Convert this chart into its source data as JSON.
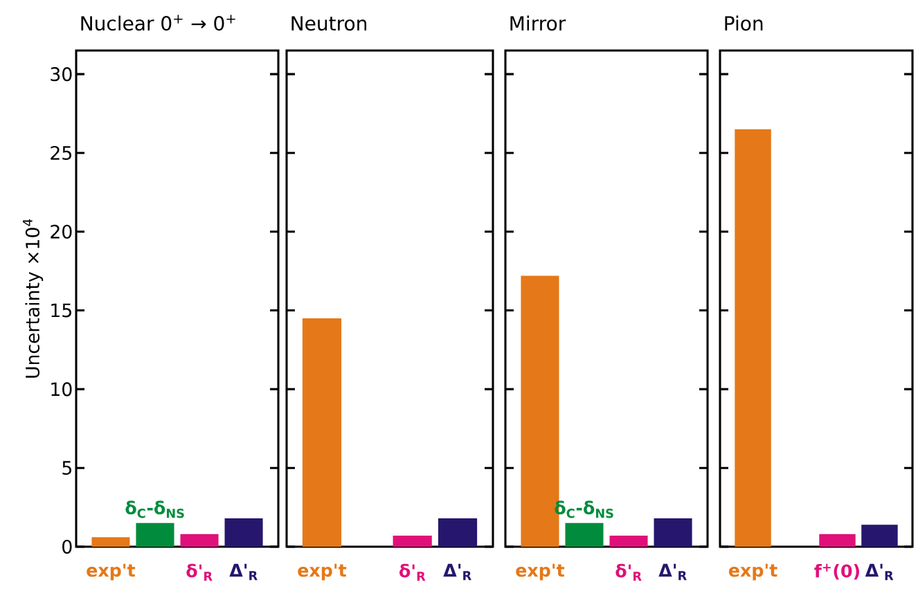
{
  "chart_data": [
    {
      "type": "bar",
      "title": "Nuclear 0$^{+}$ → 0$^{+}$",
      "ylabel": "Uncertainty ×10$^{4}$",
      "categories": [
        "exp't",
        null,
        "δ'$_{R}$",
        "Δ'$_{R}$"
      ],
      "values": [
        0.6,
        1.5,
        0.8,
        1.8
      ],
      "colors": [
        "#e57818",
        "#008c3c",
        "#e0107a",
        "#26166e"
      ],
      "ylim": [
        0,
        31.5
      ],
      "yticks": [
        0,
        5,
        10,
        15,
        20,
        25,
        30
      ],
      "annotations": [
        {
          "text": "δ$_{C}$-δ$_{NS}$",
          "y": 1.5
        }
      ]
    },
    {
      "type": "bar",
      "title": "Neutron",
      "categories": [
        "exp't",
        null,
        "δ'$_{R}$",
        "Δ'$_{R}$"
      ],
      "values": [
        14.5,
        null,
        0.7,
        1.8
      ],
      "colors": [
        "#e57818",
        null,
        "#e0107a",
        "#26166e"
      ],
      "ylim": [
        0,
        31.5
      ],
      "yticks": [
        0,
        5,
        10,
        15,
        20,
        25,
        30
      ],
      "tick_labels": "x"
    },
    {
      "type": "bar",
      "title": "Mirror",
      "categories": [
        "exp't",
        null,
        "δ'$_{R}$",
        "Δ'$_{R}$"
      ],
      "values": [
        17.2,
        1.5,
        0.7,
        1.8
      ],
      "colors": [
        "#e57818",
        "#008c3c",
        "#e0107a",
        "#26166e"
      ],
      "ylim": [
        0,
        31.5
      ],
      "yticks": [
        0,
        5,
        10,
        15,
        20,
        25,
        30
      ],
      "tick_labels": "x",
      "annotations": [
        {
          "text": "δ$_{C}$-δ$_{NS}$",
          "y": 1.5
        }
      ]
    },
    {
      "type": "bar",
      "title": "Pion",
      "categories": [
        "exp't",
        null,
        "f$^{+}$(0)",
        "Δ'$_{R}$"
      ],
      "values": [
        26.5,
        null,
        0.8,
        1.4
      ],
      "colors": [
        "#e57818",
        null,
        "#e0107a",
        "#26166e"
      ],
      "ylim": [
        0,
        31.5
      ],
      "yticks": [
        0,
        5,
        10,
        15,
        20,
        25,
        30
      ],
      "tick_labels": "x"
    }
  ]
}
